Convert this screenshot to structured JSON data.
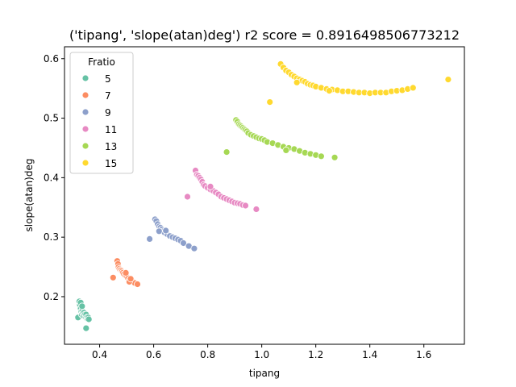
{
  "chart_data": {
    "type": "scatter",
    "title": "('tipang', 'slope(atan)deg') r2 score = 0.8916498506773212",
    "xlabel": "tipang",
    "ylabel": "slope(atan)deg",
    "xlim": [
      0.27,
      1.75
    ],
    "ylim": [
      0.12,
      0.62
    ],
    "xticks": [
      "0.4",
      "0.6",
      "0.8",
      "1.0",
      "1.2",
      "1.4",
      "1.6"
    ],
    "xtick_values": [
      0.4,
      0.6,
      0.8,
      1.0,
      1.2,
      1.4,
      1.6
    ],
    "yticks": [
      "0.2",
      "0.3",
      "0.4",
      "0.5",
      "0.6"
    ],
    "ytick_values": [
      0.2,
      0.3,
      0.4,
      0.5,
      0.6
    ],
    "grid": false,
    "legend": {
      "title": "Fratio",
      "placement": "top-left"
    },
    "series": [
      {
        "name": "5",
        "color": "#66c2a5",
        "points": [
          [
            0.32,
            0.165
          ],
          [
            0.325,
            0.192
          ],
          [
            0.327,
            0.186
          ],
          [
            0.33,
            0.18
          ],
          [
            0.332,
            0.175
          ],
          [
            0.334,
            0.17
          ],
          [
            0.336,
            0.176
          ],
          [
            0.338,
            0.172
          ],
          [
            0.34,
            0.168
          ],
          [
            0.342,
            0.173
          ],
          [
            0.345,
            0.17
          ],
          [
            0.348,
            0.166
          ],
          [
            0.35,
            0.17
          ],
          [
            0.353,
            0.165
          ],
          [
            0.355,
            0.163
          ],
          [
            0.358,
            0.165
          ],
          [
            0.36,
            0.162
          ],
          [
            0.35,
            0.147
          ],
          [
            0.33,
            0.19
          ],
          [
            0.335,
            0.184
          ]
        ]
      },
      {
        "name": "7",
        "color": "#fc8d62",
        "points": [
          [
            0.45,
            0.232
          ],
          [
            0.465,
            0.26
          ],
          [
            0.468,
            0.255
          ],
          [
            0.47,
            0.25
          ],
          [
            0.473,
            0.247
          ],
          [
            0.476,
            0.245
          ],
          [
            0.48,
            0.244
          ],
          [
            0.483,
            0.242
          ],
          [
            0.486,
            0.24
          ],
          [
            0.49,
            0.238
          ],
          [
            0.495,
            0.236
          ],
          [
            0.5,
            0.234
          ],
          [
            0.505,
            0.231
          ],
          [
            0.51,
            0.228
          ],
          [
            0.52,
            0.226
          ],
          [
            0.53,
            0.223
          ],
          [
            0.54,
            0.221
          ],
          [
            0.51,
            0.225
          ],
          [
            0.497,
            0.24
          ],
          [
            0.515,
            0.23
          ]
        ]
      },
      {
        "name": "9",
        "color": "#8da0cb",
        "points": [
          [
            0.585,
            0.297
          ],
          [
            0.605,
            0.33
          ],
          [
            0.61,
            0.327
          ],
          [
            0.615,
            0.322
          ],
          [
            0.62,
            0.318
          ],
          [
            0.625,
            0.316
          ],
          [
            0.63,
            0.313
          ],
          [
            0.635,
            0.31
          ],
          [
            0.64,
            0.308
          ],
          [
            0.65,
            0.305
          ],
          [
            0.66,
            0.302
          ],
          [
            0.67,
            0.3
          ],
          [
            0.68,
            0.298
          ],
          [
            0.69,
            0.296
          ],
          [
            0.7,
            0.294
          ],
          [
            0.71,
            0.29
          ],
          [
            0.73,
            0.285
          ],
          [
            0.75,
            0.281
          ],
          [
            0.62,
            0.31
          ],
          [
            0.645,
            0.311
          ]
        ]
      },
      {
        "name": "11",
        "color": "#e78ac3",
        "points": [
          [
            0.725,
            0.368
          ],
          [
            0.755,
            0.412
          ],
          [
            0.76,
            0.405
          ],
          [
            0.765,
            0.403
          ],
          [
            0.77,
            0.4
          ],
          [
            0.775,
            0.397
          ],
          [
            0.78,
            0.393
          ],
          [
            0.785,
            0.388
          ],
          [
            0.79,
            0.386
          ],
          [
            0.8,
            0.383
          ],
          [
            0.81,
            0.38
          ],
          [
            0.82,
            0.378
          ],
          [
            0.83,
            0.375
          ],
          [
            0.84,
            0.372
          ],
          [
            0.85,
            0.368
          ],
          [
            0.86,
            0.366
          ],
          [
            0.87,
            0.364
          ],
          [
            0.88,
            0.362
          ],
          [
            0.89,
            0.36
          ],
          [
            0.9,
            0.358
          ],
          [
            0.91,
            0.357
          ],
          [
            0.92,
            0.356
          ],
          [
            0.93,
            0.354
          ],
          [
            0.94,
            0.353
          ],
          [
            0.98,
            0.347
          ],
          [
            0.81,
            0.385
          ]
        ]
      },
      {
        "name": "13",
        "color": "#a6d854",
        "points": [
          [
            0.87,
            0.443
          ],
          [
            0.905,
            0.497
          ],
          [
            0.91,
            0.494
          ],
          [
            0.915,
            0.49
          ],
          [
            0.92,
            0.488
          ],
          [
            0.925,
            0.486
          ],
          [
            0.93,
            0.484
          ],
          [
            0.935,
            0.482
          ],
          [
            0.94,
            0.48
          ],
          [
            0.945,
            0.478
          ],
          [
            0.95,
            0.475
          ],
          [
            0.96,
            0.472
          ],
          [
            0.97,
            0.47
          ],
          [
            0.98,
            0.468
          ],
          [
            0.99,
            0.466
          ],
          [
            1.0,
            0.465
          ],
          [
            1.01,
            0.463
          ],
          [
            1.02,
            0.46
          ],
          [
            1.04,
            0.458
          ],
          [
            1.06,
            0.455
          ],
          [
            1.08,
            0.452
          ],
          [
            1.1,
            0.45
          ],
          [
            1.12,
            0.448
          ],
          [
            1.14,
            0.445
          ],
          [
            1.16,
            0.442
          ],
          [
            1.18,
            0.44
          ],
          [
            1.2,
            0.438
          ],
          [
            1.22,
            0.436
          ],
          [
            1.27,
            0.434
          ],
          [
            1.09,
            0.446
          ]
        ]
      },
      {
        "name": "15",
        "color": "#ffd92f",
        "points": [
          [
            1.03,
            0.527
          ],
          [
            1.07,
            0.591
          ],
          [
            1.08,
            0.585
          ],
          [
            1.09,
            0.58
          ],
          [
            1.1,
            0.577
          ],
          [
            1.11,
            0.573
          ],
          [
            1.12,
            0.57
          ],
          [
            1.13,
            0.567
          ],
          [
            1.14,
            0.565
          ],
          [
            1.15,
            0.563
          ],
          [
            1.16,
            0.561
          ],
          [
            1.17,
            0.558
          ],
          [
            1.18,
            0.556
          ],
          [
            1.19,
            0.555
          ],
          [
            1.2,
            0.553
          ],
          [
            1.22,
            0.551
          ],
          [
            1.24,
            0.549
          ],
          [
            1.26,
            0.548
          ],
          [
            1.28,
            0.547
          ],
          [
            1.3,
            0.545
          ],
          [
            1.32,
            0.545
          ],
          [
            1.34,
            0.544
          ],
          [
            1.36,
            0.543
          ],
          [
            1.38,
            0.543
          ],
          [
            1.4,
            0.542
          ],
          [
            1.42,
            0.543
          ],
          [
            1.44,
            0.543
          ],
          [
            1.46,
            0.543
          ],
          [
            1.48,
            0.545
          ],
          [
            1.5,
            0.546
          ],
          [
            1.52,
            0.547
          ],
          [
            1.54,
            0.549
          ],
          [
            1.56,
            0.551
          ],
          [
            1.69,
            0.565
          ],
          [
            1.13,
            0.56
          ],
          [
            1.25,
            0.546
          ]
        ]
      }
    ]
  }
}
